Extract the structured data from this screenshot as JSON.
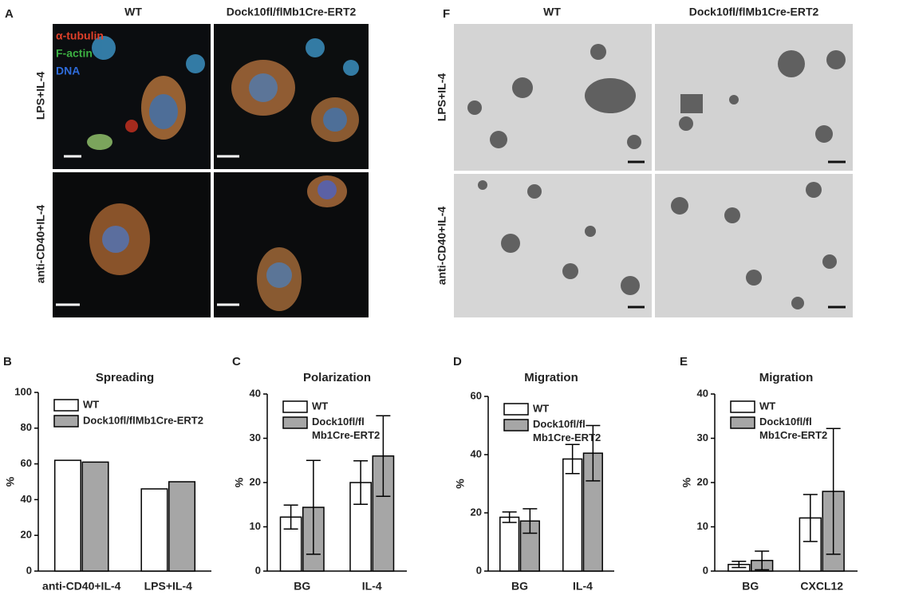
{
  "panel_a": {
    "label": "A",
    "columns": [
      "WT",
      "Dock10fl/flMb1Cre-ERT2"
    ],
    "rows": [
      "LPS+IL-4",
      "anti-CD40+IL-4"
    ],
    "stains": [
      "α-tubulin",
      "F-actin",
      "DNA"
    ]
  },
  "panel_f": {
    "label": "F",
    "columns": [
      "WT",
      "Dock10fl/flMb1Cre-ERT2"
    ],
    "rows": [
      "LPS+IL-4",
      "anti-CD40+IL-4"
    ]
  },
  "chart_data": [
    {
      "type": "bar",
      "panel": "B",
      "title": "Spreading",
      "y_label": "%",
      "categories": [
        "anti-CD40+IL-4",
        "LPS+IL-4"
      ],
      "series": [
        {
          "name": "WT",
          "color": "#ffffff",
          "values": [
            62,
            46
          ]
        },
        {
          "name": "Dock10fl/flMb1Cre-ERT2",
          "color": "#a6a6a6",
          "values": [
            61,
            50
          ]
        }
      ],
      "ylim": [
        0,
        100
      ],
      "yticks": [
        0,
        20,
        40,
        60,
        80,
        100
      ],
      "legend": "upper left"
    },
    {
      "type": "bar",
      "panel": "C",
      "title": "Polarization",
      "y_label": "%",
      "categories": [
        "BG",
        "IL-4"
      ],
      "series": [
        {
          "name": "WT",
          "color": "#ffffff",
          "values": [
            12.2,
            20
          ],
          "errors": [
            2.7,
            4.9
          ]
        },
        {
          "name": "Dock10fl/fl\nMb1Cre-ERT2",
          "color": "#a6a6a6",
          "values": [
            14.4,
            26
          ],
          "errors": [
            10.6,
            9.1
          ]
        }
      ],
      "ylim": [
        0,
        40
      ],
      "yticks": [
        0,
        10,
        20,
        30,
        40
      ],
      "legend": "upper left"
    },
    {
      "type": "bar",
      "panel": "D",
      "title": "Migration",
      "y_label": "%",
      "categories": [
        "BG",
        "IL-4"
      ],
      "series": [
        {
          "name": "WT",
          "color": "#ffffff",
          "values": [
            18.5,
            38.5
          ],
          "errors": [
            1.8,
            5
          ]
        },
        {
          "name": "Dock10fl/fl\nMb1Cre-ERT2",
          "color": "#a6a6a6",
          "values": [
            17.2,
            40.5
          ],
          "errors": [
            4.2,
            9.5
          ]
        }
      ],
      "ylim": [
        0,
        60
      ],
      "yticks": [
        0,
        20,
        40,
        60
      ],
      "legend": "upper left"
    },
    {
      "type": "bar",
      "panel": "E",
      "title": "Migration",
      "y_label": "%",
      "categories": [
        "BG",
        "CXCL12"
      ],
      "series": [
        {
          "name": "WT",
          "color": "#ffffff",
          "values": [
            1.5,
            12
          ],
          "errors": [
            0.7,
            5.3
          ]
        },
        {
          "name": "Dock10fl/fl\nMb1Cre-ERT2",
          "color": "#a6a6a6",
          "values": [
            2.4,
            18
          ],
          "errors": [
            2.1,
            14.2
          ]
        }
      ],
      "ylim": [
        0,
        40
      ],
      "yticks": [
        0,
        10,
        20,
        30,
        40
      ],
      "legend": "upper left"
    }
  ]
}
